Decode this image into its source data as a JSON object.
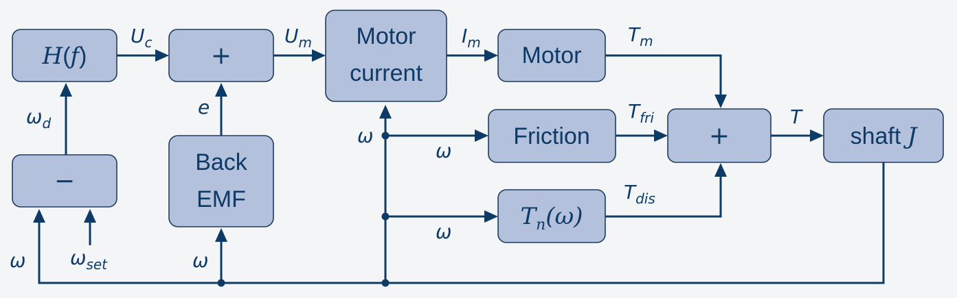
{
  "blocks": {
    "hf": {
      "main": "H",
      "open": "(",
      "arg": "f",
      "close": ")"
    },
    "sum1": {
      "op": "+"
    },
    "motor_current": {
      "line1": "Motor",
      "line2": "current"
    },
    "motor": {
      "label": "Motor"
    },
    "friction": {
      "label": "Friction"
    },
    "sum2": {
      "op": "+"
    },
    "shaft": {
      "text": "shaft",
      "symbol": "J"
    },
    "minus": {
      "op": "−"
    },
    "back_emf": {
      "line1": "Back",
      "line2": "EMF"
    },
    "tn": {
      "main": "T",
      "sub": "n",
      "arg": "(ω)"
    }
  },
  "signals": {
    "uc": {
      "main": "U",
      "sub": "c"
    },
    "um": {
      "main": "U",
      "sub": "m"
    },
    "im": {
      "main": "I",
      "sub": "m"
    },
    "tm": {
      "main": "T",
      "sub": "m"
    },
    "tfri": {
      "main": "T",
      "sub": "fri"
    },
    "tdis": {
      "main": "T",
      "sub": "dis"
    },
    "t": {
      "main": "T"
    },
    "omega_d": {
      "main": "ω",
      "sub": "d"
    },
    "e": {
      "main": "e"
    },
    "omega_set": {
      "main": "ω",
      "sub": "set"
    },
    "omega_minus_in": {
      "main": "ω"
    },
    "omega_emf_in": {
      "main": "ω"
    },
    "omega_mc_tap": {
      "main": "ω"
    },
    "omega_friction_in": {
      "main": "ω"
    },
    "omega_tn_in": {
      "main": "ω"
    }
  },
  "colors": {
    "block_fill": "#b3c1dd",
    "line": "#0e3a66",
    "background": "#f4f5f7"
  }
}
